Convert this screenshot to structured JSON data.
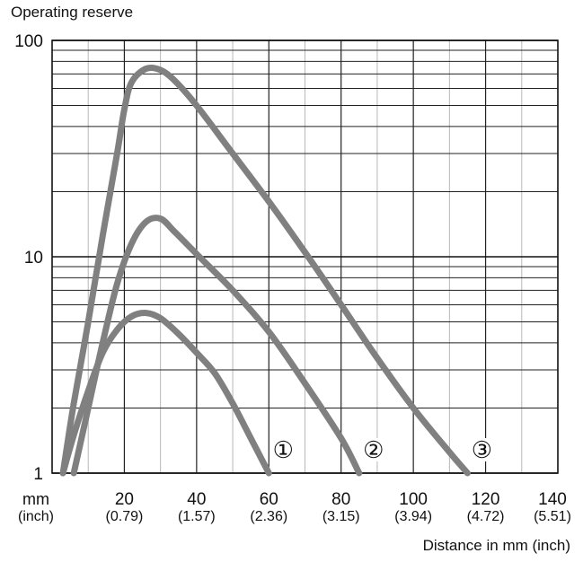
{
  "chart_data": {
    "type": "line",
    "ylabel": "Operating reserve",
    "xlabel": "Distance in mm (inch)",
    "y_scale": "log",
    "ylim": [
      1,
      100
    ],
    "y_ticks": [
      1,
      10,
      100
    ],
    "y_tick_labels": [
      "1",
      "10",
      "100"
    ],
    "xlim": [
      0,
      140
    ],
    "x_unit_label": "mm",
    "x_unit_label_secondary": "(inch)",
    "x_ticks": [
      20,
      40,
      60,
      80,
      100,
      120,
      140
    ],
    "x_tick_labels": [
      "20",
      "40",
      "60",
      "80",
      "100",
      "120",
      "140"
    ],
    "x_tick_labels_secondary": [
      "(0.79)",
      "(1.57)",
      "(2.36)",
      "(3.15)",
      "(3.94)",
      "(4.72)",
      "(5.51)"
    ],
    "grid": true,
    "series_color": "#808080",
    "series": [
      {
        "name": "①",
        "x": [
          3,
          6,
          10,
          14,
          18,
          22,
          26,
          30,
          35,
          40,
          45,
          50,
          55,
          60
        ],
        "y": [
          1.0,
          1.5,
          2.4,
          3.6,
          4.6,
          5.3,
          5.5,
          5.2,
          4.4,
          3.6,
          2.9,
          2.1,
          1.45,
          1.0
        ]
      },
      {
        "name": "②",
        "x": [
          6,
          10,
          14,
          18,
          22,
          26,
          30,
          34,
          40,
          50,
          60,
          70,
          80,
          85
        ],
        "y": [
          1.0,
          2.0,
          4.0,
          7.5,
          11.5,
          14.5,
          15.0,
          13.0,
          10.3,
          7.0,
          4.5,
          2.6,
          1.45,
          1.0
        ]
      },
      {
        "name": "③",
        "x": [
          3,
          6,
          10,
          14,
          18,
          20,
          22,
          26,
          30,
          34,
          40,
          50,
          60,
          70,
          80,
          90,
          100,
          110,
          115
        ],
        "y": [
          1.0,
          2.1,
          5.0,
          12.5,
          30.0,
          48.0,
          64.0,
          74.0,
          73.0,
          65.0,
          50.0,
          30.0,
          18.0,
          10.5,
          6.0,
          3.4,
          2.0,
          1.25,
          1.0
        ]
      }
    ]
  }
}
